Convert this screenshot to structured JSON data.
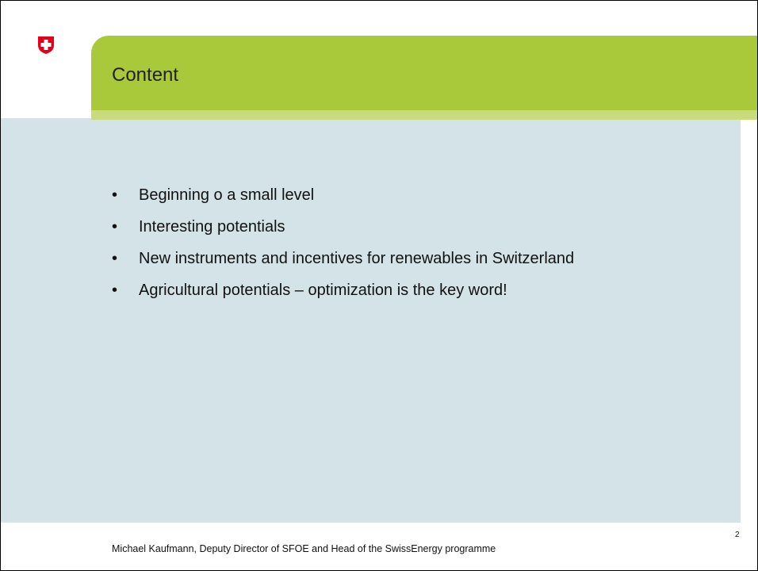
{
  "slide": {
    "title": "Content",
    "bullets": [
      "Beginning o a small level",
      "Interesting potentials",
      "New instruments and incentives for renewables in Switzerland",
      "Agricultural potentials – optimization is the key word!"
    ],
    "footer": "Michael Kaufmann, Deputy Director of SFOE and Head of the SwissEnergy programme",
    "page_number": "2"
  }
}
